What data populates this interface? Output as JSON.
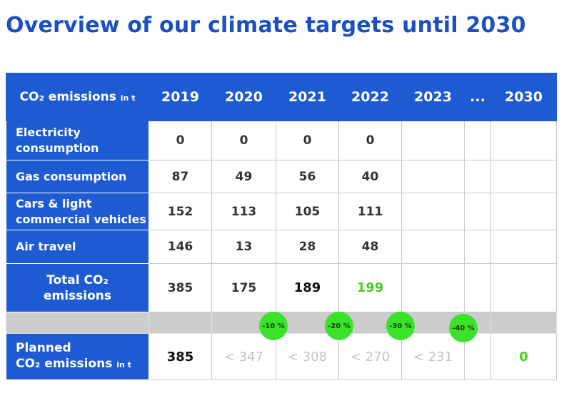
{
  "title": "Overview of our climate targets until 2030",
  "table": {
    "header": {
      "label": "CO₂ emissions",
      "unit": "in t",
      "years": [
        "2019",
        "2020",
        "2021",
        "2022",
        "2023",
        "...",
        "2030"
      ]
    },
    "rows": [
      {
        "label": "Electricity consumption",
        "values": [
          "0",
          "0",
          "0",
          "0",
          "",
          "",
          ""
        ]
      },
      {
        "label": "Gas consumption",
        "values": [
          "87",
          "49",
          "56",
          "40",
          "",
          "",
          ""
        ]
      },
      {
        "label": "Cars & light commercial vehicles",
        "values": [
          "152",
          "113",
          "105",
          "111",
          "",
          "",
          ""
        ]
      },
      {
        "label": "Air travel",
        "values": [
          "146",
          "13",
          "28",
          "48",
          "",
          "",
          ""
        ]
      }
    ],
    "total": {
      "label_line1": "Total CO₂",
      "label_line2": "emissions",
      "values": [
        "385",
        "175",
        "189",
        "199",
        "",
        "",
        ""
      ]
    },
    "reduction_badges": [
      "-10 %",
      "-20 %",
      "-30 %",
      "-40 %"
    ],
    "planned": {
      "label_line1": "Planned",
      "label_line2": "CO₂ emissions",
      "unit": "in t",
      "values": [
        "385",
        "< 347",
        "< 308",
        "< 270",
        "< 231",
        "",
        "0"
      ]
    }
  },
  "colors": {
    "header_blue": "#1e5bd2",
    "title_blue": "#1b50c0",
    "green": "#4ccd22",
    "badge_green": "#3ae22a"
  }
}
